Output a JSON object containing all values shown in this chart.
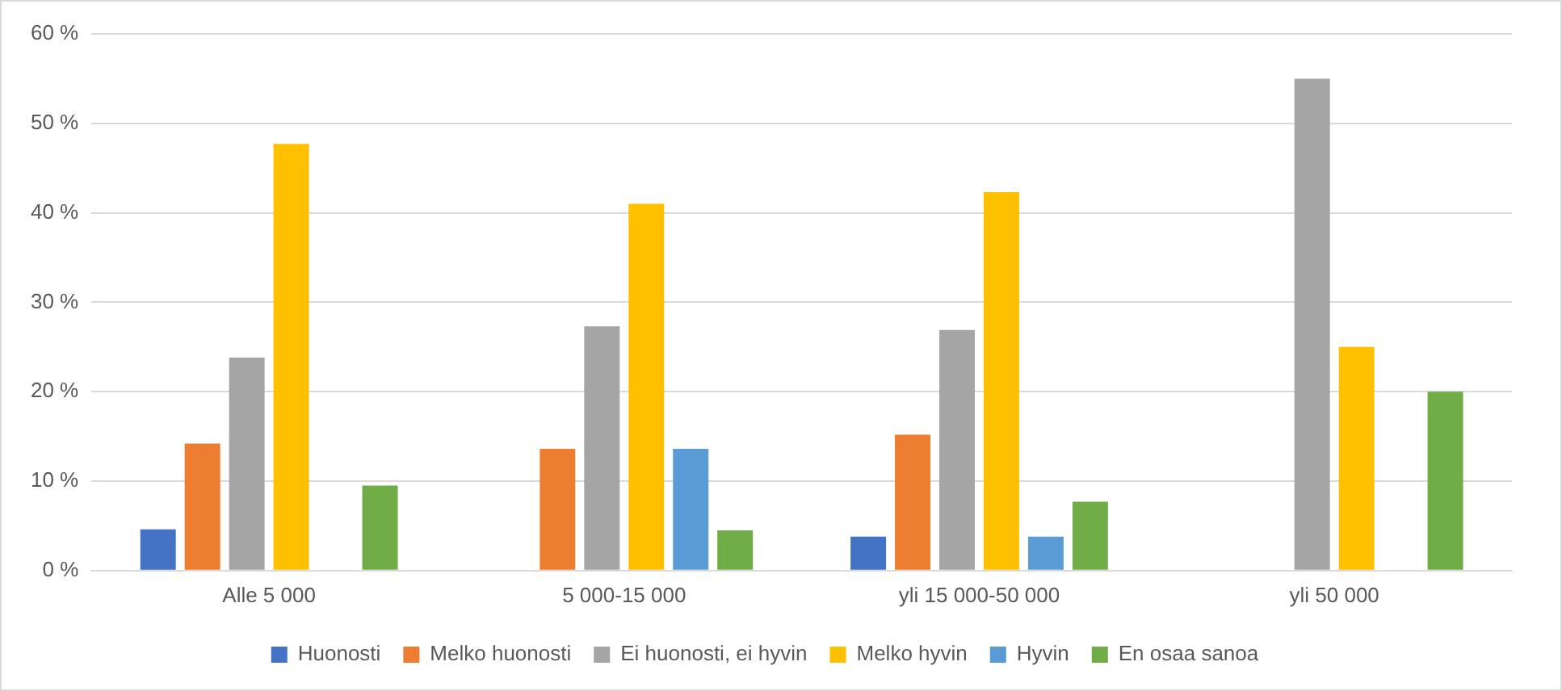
{
  "chart_data": {
    "type": "bar",
    "categories": [
      "Alle 5 000",
      "5 000-15 000",
      "yli 15 000-50 000",
      "yli 50 000"
    ],
    "series": [
      {
        "name": "Huonosti",
        "color": "#4472c4",
        "values": [
          4.6,
          null,
          3.8,
          null
        ]
      },
      {
        "name": "Melko huonosti",
        "color": "#ed7d31",
        "values": [
          14.2,
          13.6,
          15.2,
          null
        ]
      },
      {
        "name": "Ei huonosti, ei hyvin",
        "color": "#a5a5a5",
        "values": [
          23.8,
          27.3,
          26.9,
          55
        ]
      },
      {
        "name": "Melko hyvin",
        "color": "#ffc000",
        "values": [
          47.7,
          41,
          42.3,
          25
        ]
      },
      {
        "name": "Hyvin",
        "color": "#5b9bd5",
        "values": [
          null,
          13.6,
          3.8,
          null
        ]
      },
      {
        "name": "En osaa sanoa",
        "color": "#70ad47",
        "values": [
          9.5,
          4.5,
          7.7,
          20
        ]
      }
    ],
    "ylim": [
      0,
      60
    ],
    "yticks": [
      {
        "value": 0,
        "label": "0 %"
      },
      {
        "value": 10,
        "label": "10 %"
      },
      {
        "value": 20,
        "label": "20 %"
      },
      {
        "value": 30,
        "label": "30 %"
      },
      {
        "value": 40,
        "label": "40 %"
      },
      {
        "value": 50,
        "label": "50 %"
      },
      {
        "value": 60,
        "label": "60 %"
      }
    ],
    "grid": "y",
    "legend": "bottom"
  }
}
